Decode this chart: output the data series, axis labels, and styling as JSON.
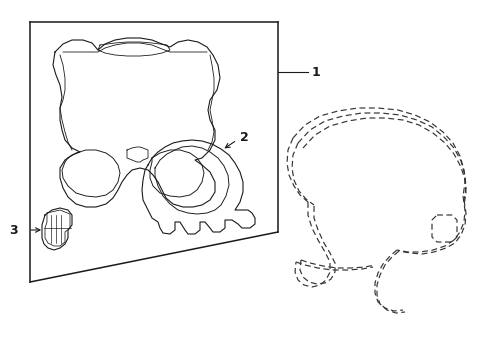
{
  "bg_color": "#ffffff",
  "line_color": "#1a1a1a",
  "dashed_color": "#333333",
  "label_1": "1",
  "label_2": "2",
  "label_3": "3",
  "fig_width": 4.89,
  "fig_height": 3.6,
  "dpi": 100
}
